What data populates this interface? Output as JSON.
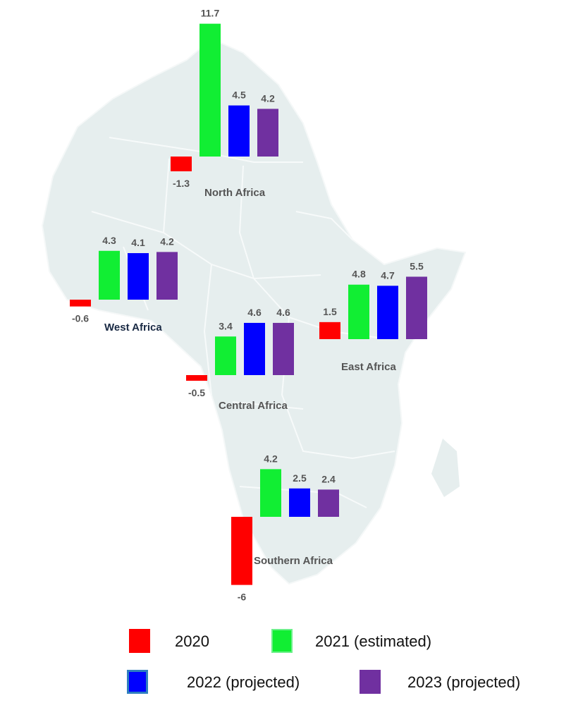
{
  "chart_data": {
    "type": "bar",
    "title": "",
    "series_names": [
      "2020",
      "2021 (estimated)",
      "2022 (projected)",
      "2023 (projected)"
    ],
    "colors": [
      "#ff0000",
      "#11ee33",
      "#0000ff",
      "#7030a0"
    ],
    "regions": [
      {
        "name": "North Africa",
        "values": [
          -1.3,
          11.7,
          4.5,
          4.2
        ],
        "labels": [
          "-1.3",
          "11.7",
          "4.5",
          "4.2"
        ]
      },
      {
        "name": "West Africa",
        "values": [
          -0.6,
          4.3,
          4.1,
          4.2
        ],
        "labels": [
          "-0.6",
          "4.3",
          "4.1",
          "4.2"
        ]
      },
      {
        "name": "Central Africa",
        "values": [
          -0.5,
          3.4,
          4.6,
          4.6
        ],
        "labels": [
          "-0.5",
          "3.4",
          "4.6",
          "4.6"
        ]
      },
      {
        "name": "East Africa",
        "values": [
          1.5,
          4.8,
          4.7,
          5.5
        ],
        "labels": [
          "1.5",
          "4.8",
          "4.7",
          "5.5"
        ]
      },
      {
        "name": "Southern Africa",
        "values": [
          -6,
          4.2,
          2.5,
          2.4
        ],
        "labels": [
          "-6",
          "4.2",
          "2.5",
          "2.4"
        ]
      }
    ]
  },
  "legend": [
    {
      "label": "2020",
      "color": "#ff0000"
    },
    {
      "label": "2021 (estimated)",
      "color": "#11ee33"
    },
    {
      "label": "2022 (projected)",
      "color": "#0000ff"
    },
    {
      "label": "2023 (projected)",
      "color": "#7030a0"
    }
  ]
}
